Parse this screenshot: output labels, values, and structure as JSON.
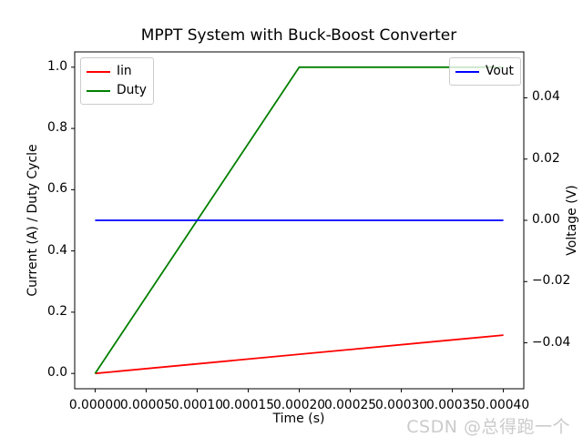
{
  "watermark": {
    "text": "CSDN @总得跑一个",
    "color": "#cbcbcb"
  },
  "chart_data": {
    "type": "line",
    "title": "MPPT System with Buck-Boost Converter",
    "xlabel": "Time (s)",
    "ylabel_left": "Current (A) / Duty Cycle",
    "ylabel_right": "Voltage (V)",
    "grid": false,
    "background": "#ffffff",
    "spine_color": "#000000",
    "xlim": [
      -2e-05,
      0.00042
    ],
    "ylim_left": [
      -0.05,
      1.05
    ],
    "ylim_right": [
      -0.055,
      0.055
    ],
    "x_ticks": {
      "values": [
        0.0,
        5e-05,
        0.0001,
        0.00015,
        0.0002,
        0.00025,
        0.0003,
        0.00035,
        0.0004
      ],
      "labels": [
        "0.00000",
        "0.00005",
        "0.00010",
        "0.00015",
        "0.00020",
        "0.00025",
        "0.00030",
        "0.00035",
        "0.00040"
      ]
    },
    "y_ticks_left": {
      "values": [
        0.0,
        0.2,
        0.4,
        0.6,
        0.8,
        1.0
      ],
      "labels": [
        "0.0",
        "0.2",
        "0.4",
        "0.6",
        "0.8",
        "1.0"
      ]
    },
    "y_ticks_right": {
      "values": [
        -0.04,
        -0.02,
        0.0,
        0.02,
        0.04
      ],
      "labels": [
        "−0.04",
        "−0.02",
        "0.00",
        "0.02",
        "0.04"
      ]
    },
    "series": [
      {
        "name": "Iin",
        "color": "#ff0000",
        "axis": "left",
        "x": [
          0.0,
          0.0004
        ],
        "y": [
          0.0,
          0.125
        ]
      },
      {
        "name": "Duty",
        "color": "#008000",
        "axis": "left",
        "x": [
          0.0,
          0.0002,
          0.0004
        ],
        "y": [
          0.0,
          1.0,
          1.0
        ]
      },
      {
        "name": "Vout",
        "color": "#0000ff",
        "axis": "right",
        "x": [
          0.0,
          0.0004
        ],
        "y": [
          0.0,
          0.0
        ]
      }
    ],
    "legends": [
      {
        "position": "upper-left",
        "entries": [
          "Iin",
          "Duty"
        ]
      },
      {
        "position": "upper-right",
        "entries": [
          "Vout"
        ]
      }
    ]
  }
}
